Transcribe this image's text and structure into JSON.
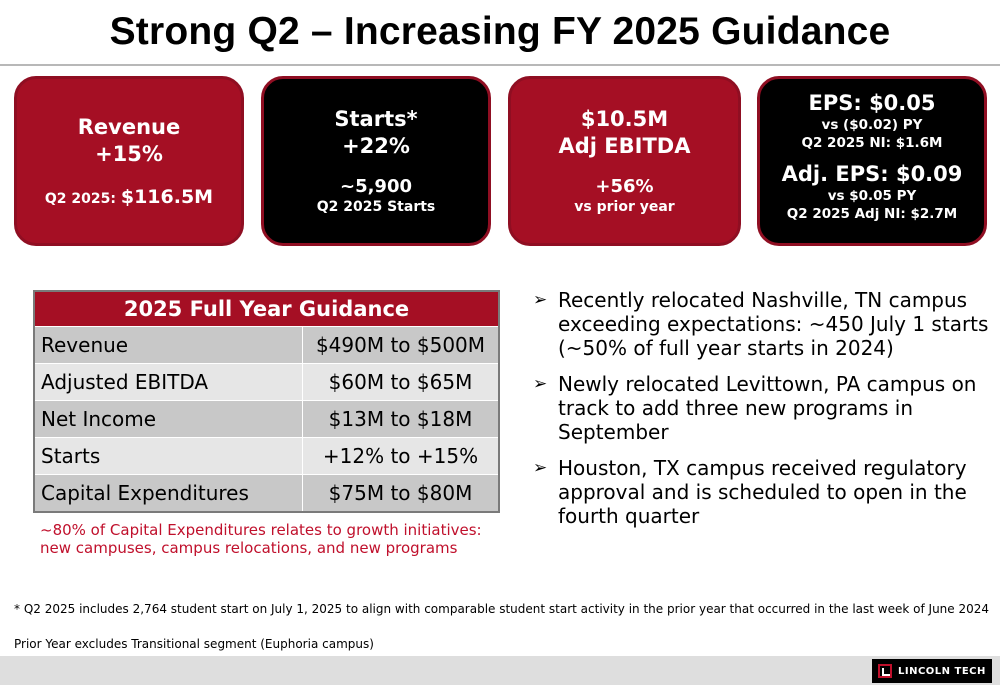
{
  "title": "Strong Q2 – Increasing FY 2025 Guidance",
  "cards": {
    "revenue": {
      "line1": "Revenue",
      "line2": "+15%",
      "sub_label": "Q2 2025: ",
      "sub_value": "$116.5M"
    },
    "starts": {
      "line1": "Starts*",
      "line2": "+22%",
      "line3": "~5,900",
      "line4": "Q2 2025 Starts"
    },
    "ebitda": {
      "line1": "$10.5M",
      "line2": "Adj EBITDA",
      "line3": "+56%",
      "line4": "vs prior year"
    },
    "eps": {
      "eps": "EPS: $0.05",
      "eps_vs": "vs ($0.02) PY",
      "ni": "Q2 2025 NI: $1.6M",
      "adj_eps": "Adj. EPS: $0.09",
      "adj_vs": "vs $0.05 PY",
      "adj_ni": "Q2 2025 Adj NI: $2.7M"
    }
  },
  "guidance": {
    "header": "2025 Full Year Guidance",
    "rows": [
      {
        "label": "Revenue",
        "value": "$490M to $500M"
      },
      {
        "label": "Adjusted EBITDA",
        "value": "$60M to $65M"
      },
      {
        "label": "Net Income",
        "value": "$13M to $18M"
      },
      {
        "label": "Starts",
        "value": "+12% to +15%"
      },
      {
        "label": "Capital Expenditures",
        "value": "$75M to $80M"
      }
    ]
  },
  "capex_note": "~80% of Capital Expenditures relates to growth initiatives: new campuses, campus relocations, and new programs",
  "bullets": [
    "Recently relocated Nashville, TN campus exceeding expectations: ~450 July 1 starts (~50% of full year starts in 2024)",
    "Newly relocated Levittown, PA campus on track to add three new programs in September",
    "Houston, TX campus received regulatory approval and is scheduled to open in the fourth quarter"
  ],
  "footnote": "* Q2 2025 includes 2,764 student start on July 1, 2025 to align with comparable student start activity in the prior year that occurred in the last week of June 2024",
  "footnote2": "Prior Year excludes Transitional segment (Euphoria campus)",
  "logo_text": "LINCOLN TECH",
  "colors": {
    "accent_red": "#a50f24",
    "note_red": "#c0102c",
    "black": "#000000"
  }
}
